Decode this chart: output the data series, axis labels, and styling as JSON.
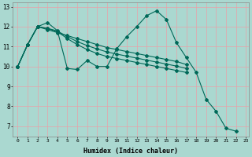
{
  "xlabel": "Humidex (Indice chaleur)",
  "bg_color": "#aad8d0",
  "grid_color": "#e8a0a8",
  "line_color": "#006858",
  "xlim": [
    -0.5,
    23.3
  ],
  "ylim": [
    6.5,
    13.2
  ],
  "xticks": [
    0,
    1,
    2,
    3,
    4,
    5,
    6,
    7,
    8,
    9,
    10,
    11,
    12,
    13,
    14,
    15,
    16,
    17,
    18,
    19,
    20,
    21,
    22,
    23
  ],
  "yticks": [
    7,
    8,
    9,
    10,
    11,
    12,
    13
  ],
  "series": [
    {
      "x": [
        0,
        1,
        2,
        3,
        4,
        5,
        6,
        7,
        8,
        9,
        10,
        11,
        12,
        13,
        14,
        15,
        16,
        17,
        18,
        19,
        20,
        21,
        22
      ],
      "y": [
        10.0,
        11.1,
        12.0,
        12.2,
        11.8,
        9.9,
        9.85,
        10.3,
        10.0,
        10.0,
        10.9,
        11.5,
        12.0,
        12.55,
        12.8,
        12.35,
        11.2,
        10.45,
        9.7,
        8.35,
        7.75,
        6.9,
        6.75
      ]
    },
    {
      "x": [
        0,
        1,
        2,
        3,
        4,
        5,
        6,
        7,
        8,
        9,
        10,
        11,
        12,
        13,
        14,
        15,
        16,
        17
      ],
      "y": [
        10.0,
        11.1,
        12.0,
        11.85,
        11.7,
        11.55,
        11.4,
        11.25,
        11.1,
        10.95,
        10.85,
        10.75,
        10.65,
        10.55,
        10.45,
        10.35,
        10.25,
        10.1
      ]
    },
    {
      "x": [
        0,
        1,
        2,
        3,
        4,
        5,
        6,
        7,
        8,
        9,
        10,
        11,
        12,
        13,
        14,
        15,
        16,
        17
      ],
      "y": [
        10.0,
        11.1,
        12.0,
        11.9,
        11.75,
        11.4,
        11.1,
        10.85,
        10.65,
        10.5,
        10.4,
        10.3,
        10.2,
        10.1,
        10.0,
        9.9,
        9.8,
        9.7
      ]
    },
    {
      "x": [
        0,
        1,
        2,
        3,
        4,
        5,
        6,
        7,
        8,
        9,
        10,
        11,
        12,
        13,
        14,
        15,
        16,
        17
      ],
      "y": [
        10.0,
        11.1,
        12.0,
        11.92,
        11.78,
        11.5,
        11.25,
        11.05,
        10.88,
        10.73,
        10.62,
        10.52,
        10.42,
        10.32,
        10.22,
        10.12,
        10.02,
        9.9
      ]
    }
  ]
}
